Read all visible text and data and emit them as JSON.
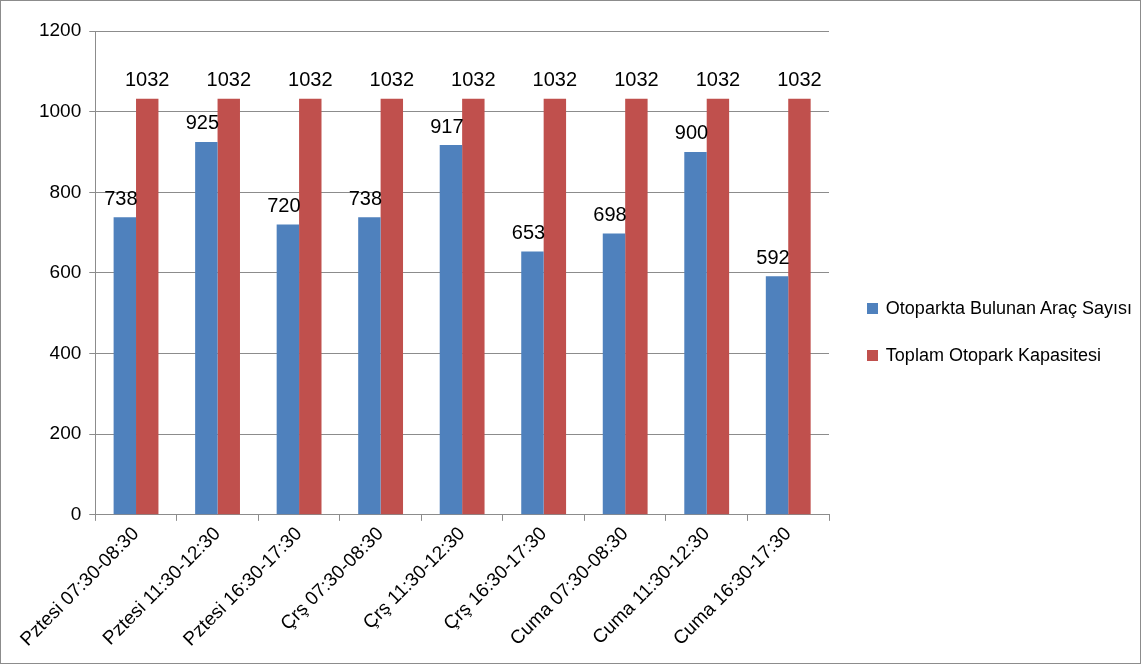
{
  "chart_data": {
    "type": "bar",
    "categories": [
      "Pztesi 07:30-08:30",
      "Pztesi 11:30-12:30",
      "Pztesi 16:30-17:30",
      "Çrş 07:30-08:30",
      "Çrş 11:30-12:30",
      "Çrş 16:30-17:30",
      "Cuma 07:30-08:30",
      "Cuma 11:30-12:30",
      "Cuma 16:30-17:30"
    ],
    "series": [
      {
        "name": "Otoparkta Bulunan Araç Sayısı",
        "color": "#4f81bd",
        "values": [
          738,
          925,
          720,
          738,
          917,
          653,
          698,
          900,
          592
        ]
      },
      {
        "name": "Toplam Otopark Kapasitesi",
        "color": "#c0504d",
        "values": [
          1032,
          1032,
          1032,
          1032,
          1032,
          1032,
          1032,
          1032,
          1032
        ]
      }
    ],
    "ylim": [
      0,
      1200
    ],
    "yticks": [
      0,
      200,
      400,
      600,
      800,
      1000,
      1200
    ],
    "grid": "y",
    "legend": "right",
    "data_labels": true
  }
}
